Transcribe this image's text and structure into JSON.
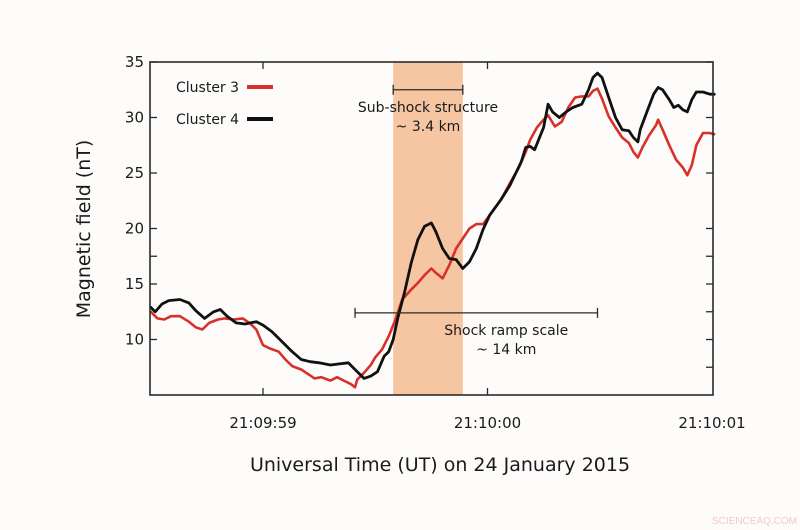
{
  "chart_data": {
    "type": "line",
    "title": "",
    "xlabel": "Universal Time (UT) on 24 January 2015",
    "ylabel": "Magnetic field (nT)",
    "x_units": "seconds relative to 21:09:59 UT",
    "xlim": [
      -0.5,
      2.01
    ],
    "ylim": [
      5,
      35
    ],
    "x_ticks": [
      {
        "value": 0,
        "label": "21:09:59"
      },
      {
        "value": 1,
        "label": "21:10:00"
      },
      {
        "value": 2,
        "label": "21:10:01"
      }
    ],
    "y_ticks": [
      10,
      15,
      20,
      25,
      30,
      35
    ],
    "y_minor_ticks": [
      17.5
    ],
    "grid": false,
    "legend_position": "upper-left",
    "series": [
      {
        "name": "Cluster 3",
        "color": "#d9302a",
        "x": [
          -0.5,
          -0.47,
          -0.44,
          -0.41,
          -0.37,
          -0.33,
          -0.3,
          -0.27,
          -0.24,
          -0.2,
          -0.17,
          -0.13,
          -0.09,
          -0.06,
          -0.03,
          0.0,
          0.03,
          0.07,
          0.1,
          0.13,
          0.17,
          0.2,
          0.23,
          0.26,
          0.3,
          0.33,
          0.36,
          0.39,
          0.41,
          0.42,
          0.45,
          0.48,
          0.5,
          0.53,
          0.56,
          0.59,
          0.62,
          0.66,
          0.69,
          0.72,
          0.75,
          0.77,
          0.8,
          0.83,
          0.86,
          0.89,
          0.92,
          0.95,
          0.98,
          1.01,
          1.06,
          1.1,
          1.14,
          1.17,
          1.19,
          1.22,
          1.25,
          1.27,
          1.3,
          1.33,
          1.36,
          1.39,
          1.42,
          1.45,
          1.47,
          1.49,
          1.51,
          1.54,
          1.57,
          1.6,
          1.63,
          1.65,
          1.67,
          1.69,
          1.72,
          1.75,
          1.76,
          1.78,
          1.81,
          1.84,
          1.87,
          1.89,
          1.91,
          1.93,
          1.96,
          1.99,
          2.01
        ],
        "values": [
          12.5,
          11.9,
          11.8,
          12.1,
          12.1,
          11.6,
          11.1,
          10.9,
          11.5,
          11.8,
          11.9,
          11.8,
          11.9,
          11.5,
          10.9,
          9.5,
          9.2,
          8.9,
          8.2,
          7.6,
          7.3,
          6.9,
          6.5,
          6.6,
          6.3,
          6.6,
          6.3,
          6.0,
          5.7,
          6.4,
          7.0,
          7.7,
          8.4,
          9.1,
          10.3,
          11.8,
          13.6,
          14.5,
          15.1,
          15.8,
          16.4,
          16.0,
          15.5,
          16.7,
          18.2,
          19.1,
          20.0,
          20.4,
          20.4,
          21.2,
          22.6,
          24.1,
          25.5,
          26.9,
          28.0,
          29.1,
          29.8,
          30.2,
          29.2,
          29.6,
          30.9,
          31.8,
          31.9,
          31.9,
          32.4,
          32.6,
          31.7,
          30.1,
          29.1,
          28.2,
          27.7,
          26.9,
          26.4,
          27.3,
          28.4,
          29.3,
          29.8,
          28.9,
          27.5,
          26.2,
          25.5,
          24.8,
          25.7,
          27.5,
          28.6,
          28.6,
          28.5
        ]
      },
      {
        "name": "Cluster 4",
        "color": "#111111",
        "x": [
          -0.5,
          -0.48,
          -0.45,
          -0.42,
          -0.37,
          -0.33,
          -0.3,
          -0.26,
          -0.22,
          -0.19,
          -0.16,
          -0.12,
          -0.08,
          -0.03,
          0.0,
          0.04,
          0.08,
          0.13,
          0.17,
          0.21,
          0.25,
          0.3,
          0.34,
          0.38,
          0.41,
          0.45,
          0.48,
          0.51,
          0.54,
          0.56,
          0.58,
          0.6,
          0.63,
          0.66,
          0.69,
          0.72,
          0.75,
          0.77,
          0.8,
          0.83,
          0.86,
          0.89,
          0.92,
          0.95,
          0.98,
          1.01,
          1.06,
          1.1,
          1.15,
          1.17,
          1.19,
          1.21,
          1.25,
          1.27,
          1.29,
          1.32,
          1.35,
          1.38,
          1.42,
          1.45,
          1.47,
          1.49,
          1.51,
          1.54,
          1.57,
          1.6,
          1.63,
          1.65,
          1.67,
          1.68,
          1.71,
          1.74,
          1.76,
          1.78,
          1.81,
          1.83,
          1.85,
          1.87,
          1.89,
          1.91,
          1.93,
          1.96,
          1.99,
          2.01
        ],
        "values": [
          12.9,
          12.5,
          13.2,
          13.5,
          13.6,
          13.3,
          12.6,
          11.9,
          12.5,
          12.7,
          12.1,
          11.5,
          11.4,
          11.6,
          11.3,
          10.7,
          9.9,
          8.9,
          8.2,
          8.0,
          7.9,
          7.7,
          7.8,
          7.9,
          7.3,
          6.5,
          6.7,
          7.1,
          8.5,
          8.9,
          10.0,
          11.9,
          14.2,
          16.9,
          19.0,
          20.2,
          20.5,
          19.7,
          18.2,
          17.3,
          17.2,
          16.4,
          17.0,
          18.2,
          19.9,
          21.2,
          22.6,
          23.9,
          26.0,
          27.3,
          27.4,
          27.1,
          29.1,
          31.2,
          30.5,
          30.0,
          30.5,
          30.9,
          31.2,
          32.5,
          33.6,
          34.0,
          33.6,
          31.8,
          30.0,
          28.9,
          28.8,
          28.2,
          27.8,
          28.9,
          30.5,
          32.1,
          32.7,
          32.5,
          31.6,
          30.9,
          31.1,
          30.7,
          30.5,
          31.6,
          32.3,
          32.3,
          32.1,
          32.1
        ]
      }
    ],
    "annotations": [
      {
        "id": "sub-shock",
        "type": "shaded-band",
        "x_start": 0.58,
        "x_end": 0.89,
        "color": "#f6c6a2"
      },
      {
        "id": "sub-shock-bar",
        "type": "range-bar",
        "x_start": 0.58,
        "x_end": 0.89,
        "y": 32.5,
        "label_line1": "Sub-shock structure",
        "label_line2": "~ 3.4 km"
      },
      {
        "id": "shock-ramp-bar",
        "type": "range-bar",
        "x_start": 0.41,
        "x_end": 1.49,
        "y": 12.4,
        "label_line1": "Shock ramp scale",
        "label_line2": "~ 14 km"
      }
    ]
  },
  "legend": {
    "items": [
      {
        "label": "Cluster 3",
        "color": "#d9302a"
      },
      {
        "label": "Cluster 4",
        "color": "#111111"
      }
    ]
  },
  "axes": {
    "xlabel": "Universal Time (UT) on 24 January 2015",
    "ylabel": "Magnetic field (nT)"
  },
  "watermark": "SCIENCEAQ.COM"
}
